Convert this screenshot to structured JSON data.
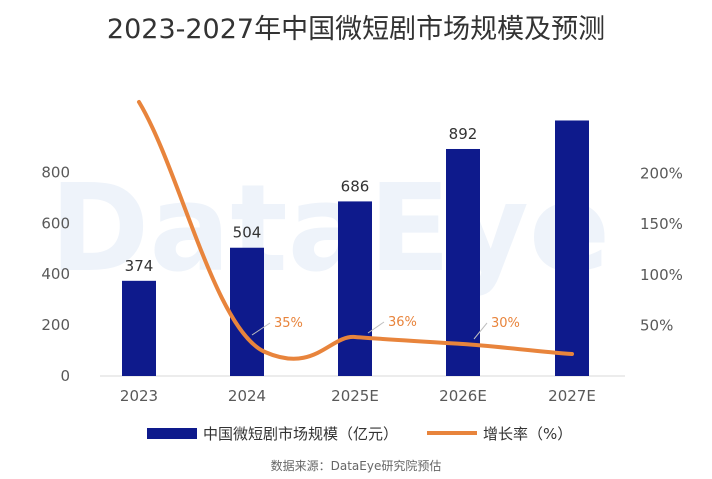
{
  "chart_data": {
    "type": "bar+line",
    "title": "2023-2027年中国微短剧市场规模及预测",
    "categories": [
      "2023",
      "2024",
      "2025E",
      "2026E",
      "2027E"
    ],
    "series": [
      {
        "name": "中国微短剧市场规模（亿元）",
        "type": "bar",
        "axis": "left",
        "color": "#0E1A8C",
        "values": [
          374,
          504,
          686,
          892,
          1004
        ],
        "labels": [
          "374",
          "504",
          "686",
          "892",
          ""
        ]
      },
      {
        "name": "增长率（%）",
        "type": "line",
        "axis": "right",
        "color": "#E8843C",
        "values": [
          268,
          35,
          36,
          30,
          20
        ],
        "labels": [
          "",
          "35%",
          "36%",
          "30%",
          ""
        ]
      }
    ],
    "x_tick_labels": [
      "2023",
      "2024",
      "2025E",
      "2026E",
      "2027E"
    ],
    "y_left": {
      "ticks": [
        "0",
        "200",
        "400",
        "600",
        "800"
      ],
      "range": [
        0,
        1000
      ]
    },
    "y_right": {
      "ticks": [
        "50%",
        "100%",
        "150%",
        "200%"
      ],
      "range": [
        -1,
        263
      ]
    },
    "legend_position": "bottom",
    "grid": false,
    "watermark": "DataEye",
    "source": "数据来源：DataEye研究院预估"
  }
}
